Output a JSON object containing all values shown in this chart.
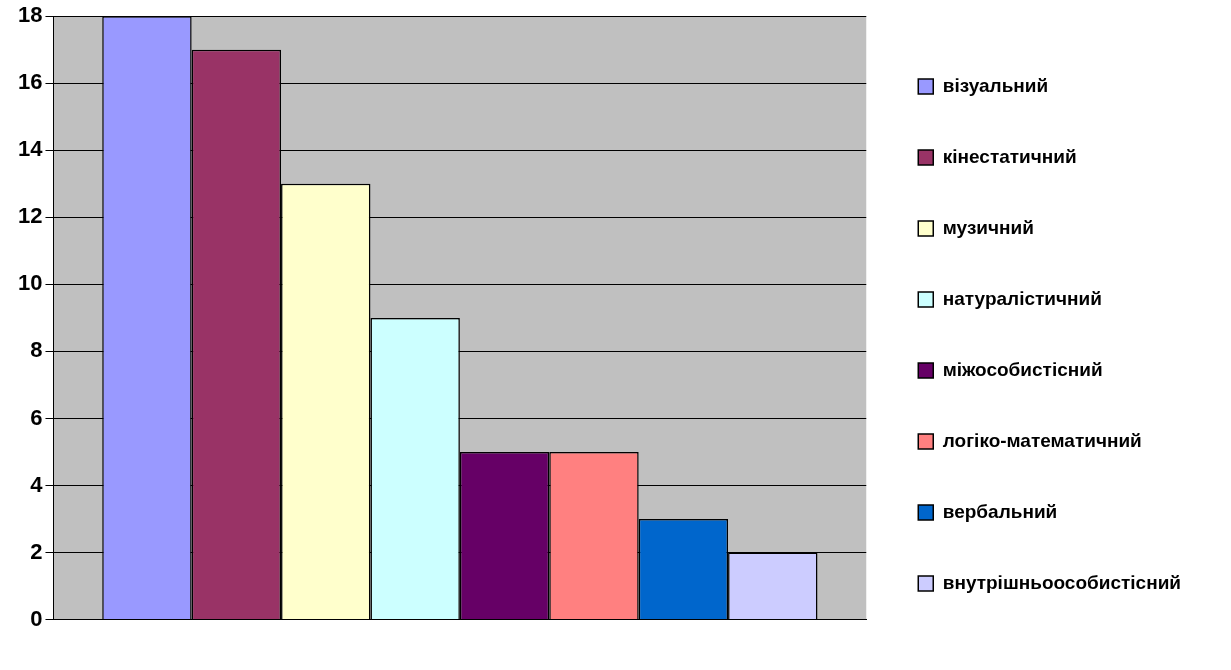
{
  "chart_data": {
    "type": "bar",
    "categories": [
      null
    ],
    "series": [
      {
        "name": "візуальний",
        "color": "#9999ff",
        "values": [
          18
        ]
      },
      {
        "name": "кінестатичний",
        "color": "#993366",
        "values": [
          17
        ]
      },
      {
        "name": "музичний",
        "color": "#ffffcc",
        "values": [
          13
        ]
      },
      {
        "name": "натуралістичний",
        "color": "#ccffff",
        "values": [
          9
        ]
      },
      {
        "name": "міжособистісний",
        "color": "#660066",
        "values": [
          5
        ]
      },
      {
        "name": "логіко-математичний",
        "color": "#ff8080",
        "values": [
          5
        ]
      },
      {
        "name": "вербальний",
        "color": "#0066cc",
        "values": [
          3
        ]
      },
      {
        "name": "внутрішньоособистісний",
        "color": "#ccccff",
        "values": [
          2
        ]
      }
    ],
    "ylim": [
      0,
      18
    ],
    "yticks": [
      0,
      2,
      4,
      6,
      8,
      10,
      12,
      14,
      16,
      18
    ],
    "grid": "y",
    "legend": "right"
  }
}
